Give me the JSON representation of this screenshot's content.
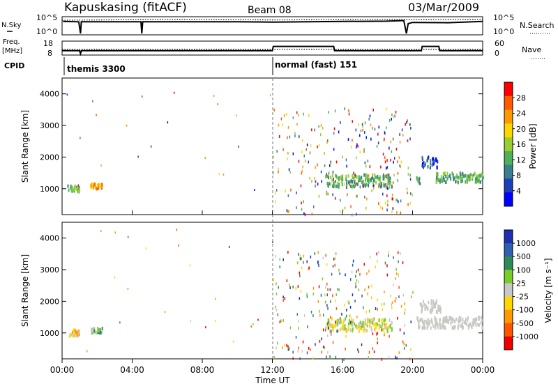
{
  "header": {
    "station": "Kapuskasing (fitACF)",
    "beam": "Beam 08",
    "date": "03/Mar/2009"
  },
  "strip_labels": {
    "nsky": "N.Sky",
    "freq": "Freq.",
    "mhz": "[MHz]",
    "cpid": "CPID",
    "nsearch": "N.Search",
    "nave": "Nave",
    "sky_ticks": [
      "10^5",
      "10^0"
    ],
    "freq_ticks": [
      "18",
      "8"
    ],
    "nave_ticks": [
      "60",
      "0"
    ]
  },
  "cpid_labels": [
    "themis 3300",
    "normal (fast) 151"
  ],
  "colors": {
    "power_scale": [
      "#0000ff",
      "#1f3fb8",
      "#3a7f8f",
      "#4faf5a",
      "#9acd32",
      "#ffd700",
      "#ff9900",
      "#ff5a00",
      "#ff0000"
    ],
    "velocity_scale": [
      "#1e2fb0",
      "#2f5fb0",
      "#2e8b57",
      "#7acc29",
      "#c8c8c8",
      "#ffd700",
      "#ff9900",
      "#ff5500",
      "#ee0000"
    ],
    "ground_scatter": "#c8c8c4"
  },
  "chart_data": [
    {
      "type": "line",
      "panel": "sky noise / search noise",
      "x_unit": "UT hour",
      "series": [
        {
          "name": "N.Sky",
          "style": "solid",
          "points": [
            [
              0.05,
              3.9
            ],
            [
              0.95,
              3.8
            ],
            [
              1.05,
              0
            ],
            [
              1.1,
              3.8
            ],
            [
              4.5,
              3.8
            ],
            [
              4.55,
              0
            ],
            [
              4.6,
              3.8
            ],
            [
              10,
              3.8
            ],
            [
              12,
              3.7
            ],
            [
              16,
              3.9
            ],
            [
              18.5,
              4.0
            ],
            [
              19.5,
              4.2
            ],
            [
              19.65,
              0
            ],
            [
              19.75,
              3.2
            ],
            [
              20,
              3.6
            ],
            [
              22,
              3.5
            ],
            [
              24,
              3.9
            ]
          ]
        },
        {
          "name": "N.Search",
          "style": "dotted",
          "points": [
            [
              0,
              4.3
            ],
            [
              6,
              4.6
            ],
            [
              12,
              4.4
            ],
            [
              16,
              4.5
            ],
            [
              19.5,
              4.6
            ],
            [
              20,
              4.5
            ],
            [
              24,
              4.6
            ]
          ]
        }
      ]
    },
    {
      "type": "line",
      "panel": "frequency / nave",
      "x_unit": "UT hour",
      "y_ticks": [
        8,
        18
      ],
      "series": [
        {
          "name": "Freq.",
          "style": "solid",
          "points": [
            [
              0,
              10.6
            ],
            [
              1,
              10.6
            ],
            [
              1.05,
              8
            ],
            [
              1.1,
              10.6
            ],
            [
              12,
              10.6
            ],
            [
              12.05,
              14.5
            ],
            [
              15.5,
              14.5
            ],
            [
              15.55,
              10.6
            ],
            [
              20.5,
              10.6
            ],
            [
              20.55,
              14.5
            ],
            [
              21.5,
              14.5
            ],
            [
              21.55,
              10.6
            ],
            [
              24,
              10.6
            ]
          ]
        },
        {
          "name": "Nave",
          "style": "dotted",
          "points": [
            [
              0,
              12
            ],
            [
              12,
              12
            ],
            [
              15,
              12
            ],
            [
              24,
              12
            ]
          ]
        }
      ]
    },
    {
      "type": "heatmap",
      "panel": "power",
      "xlabel": "",
      "ylabel": "Slant Range [km]",
      "colorbar_label": "Power [dB]",
      "colorbar_ticks": [
        4,
        8,
        12,
        16,
        20,
        24,
        28
      ],
      "xlim": [
        0,
        24
      ],
      "ylim": [
        180,
        4500
      ],
      "y_ticks": [
        1000,
        2000,
        3000,
        4000
      ],
      "regions": [
        {
          "t": [
            0.3,
            1.0
          ],
          "r": [
            950,
            1150
          ],
          "level": 3
        },
        {
          "t": [
            1.6,
            2.3
          ],
          "r": [
            1050,
            1200
          ],
          "level": 6
        },
        {
          "t": [
            15.0,
            18.8
          ],
          "r": [
            1100,
            1500
          ],
          "level": 3
        },
        {
          "t": [
            20.2,
            20.4
          ],
          "r": [
            1200,
            1400
          ],
          "level": 3
        },
        {
          "t": [
            21.3,
            24.0
          ],
          "r": [
            1250,
            1550
          ],
          "level": 3
        },
        {
          "t": [
            20.5,
            21.4
          ],
          "r": [
            1700,
            2050
          ],
          "level": 1
        }
      ],
      "scatter_window": {
        "t": [
          12.0,
          20.0
        ],
        "r": [
          200,
          3600
        ]
      }
    },
    {
      "type": "heatmap",
      "panel": "velocity",
      "xlabel": "Time UT",
      "ylabel": "Slant Range [km]",
      "colorbar_label": "Velocity [m s⁻¹]",
      "colorbar_ticks": [
        1000,
        500,
        100,
        25,
        -25,
        -100,
        -500,
        -1000
      ],
      "xlim": [
        0,
        24
      ],
      "ylim": [
        180,
        4500
      ],
      "y_ticks": [
        1000,
        2000,
        3000,
        4000
      ],
      "x_ticks": [
        "00:00",
        "04:00",
        "08:00",
        "12:00",
        "16:00",
        "20:00",
        "00:00"
      ],
      "regions": [
        {
          "t": [
            0.3,
            1.0
          ],
          "r": [
            950,
            1150
          ],
          "level": 5
        },
        {
          "t": [
            1.6,
            2.3
          ],
          "r": [
            1050,
            1200
          ],
          "level": 3
        },
        {
          "t": [
            15.0,
            18.8
          ],
          "r": [
            1100,
            1500
          ],
          "level": 4
        },
        {
          "t": [
            20.2,
            24.0
          ],
          "r": [
            1200,
            1550
          ],
          "level": 4
        },
        {
          "t": [
            20.4,
            21.6
          ],
          "r": [
            1700,
            2100
          ],
          "level": 4
        }
      ]
    }
  ]
}
